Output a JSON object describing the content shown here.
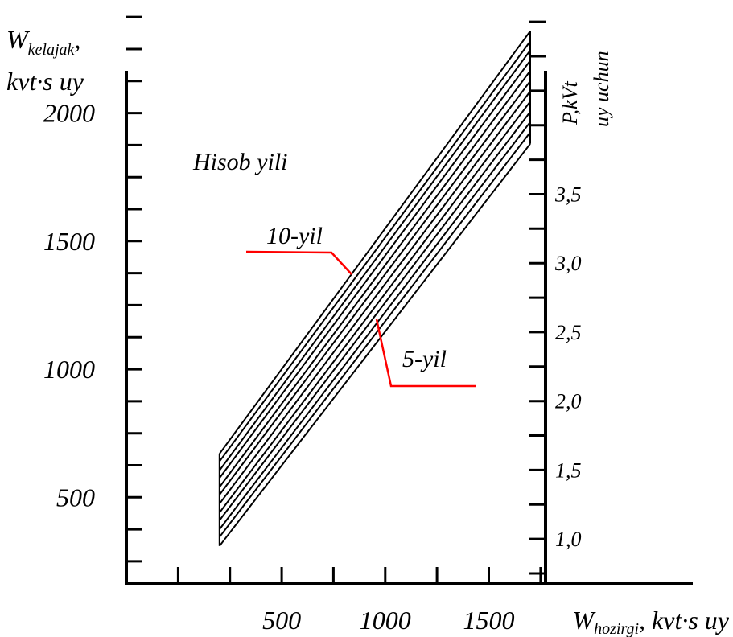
{
  "chart_data": {
    "type": "line",
    "yaxis": {
      "label_main": "W",
      "label_sub": "kelajak",
      "label_tail": ",",
      "label_line2": "kvt·s uy",
      "ticks": [
        500,
        1000,
        1500,
        2000
      ],
      "ylim": [
        165,
        2410
      ]
    },
    "xaxis": {
      "label_main": "W",
      "label_sub": "hozirgi",
      "label_tail": ", kvt·s uy",
      "ticks": [
        500,
        1000,
        1500
      ],
      "xlim": [
        -250,
        1770
      ]
    },
    "right_axis": {
      "label_line1": "P,kVt",
      "label_line2": "uy uchun",
      "ticks": [
        "1,0",
        "1,5",
        "2,0",
        "2,5",
        "3,0",
        "3,5"
      ],
      "tick_values": [
        1.0,
        1.5,
        2.0,
        2.5,
        3.0,
        3.5
      ],
      "range": [
        0.68,
        4.85
      ]
    },
    "title": "Hisob yili",
    "annotations": [
      {
        "text": "10-yil",
        "target": "top"
      },
      {
        "text": "5-yil",
        "target": "bottom"
      }
    ],
    "line_count": 12,
    "x_start": 200,
    "x_end": 1700,
    "series": [
      {
        "values_at_x": [
          200,
          1700
        ],
        "values": [
          670,
          2320
        ]
      },
      {
        "values_at_x": [
          200,
          1700
        ],
        "values": [
          640,
          2280
        ]
      },
      {
        "values_at_x": [
          200,
          1700
        ],
        "values": [
          605,
          2245
        ]
      },
      {
        "values_at_x": [
          200,
          1700
        ],
        "values": [
          575,
          2205
        ]
      },
      {
        "values_at_x": [
          200,
          1700
        ],
        "values": [
          540,
          2165
        ]
      },
      {
        "values_at_x": [
          200,
          1700
        ],
        "values": [
          510,
          2125
        ]
      },
      {
        "values_at_x": [
          200,
          1700
        ],
        "values": [
          475,
          2085
        ]
      },
      {
        "values_at_x": [
          200,
          1700
        ],
        "values": [
          440,
          2045
        ]
      },
      {
        "values_at_x": [
          200,
          1700
        ],
        "values": [
          410,
          2005
        ]
      },
      {
        "values_at_x": [
          200,
          1700
        ],
        "values": [
          375,
          1965
        ]
      },
      {
        "values_at_x": [
          200,
          1700
        ],
        "values": [
          345,
          1925
        ]
      },
      {
        "values_at_x": [
          200,
          1700
        ],
        "values": [
          310,
          1880
        ]
      }
    ],
    "colors": {
      "lines": "#000000",
      "annotation": "#ff0000",
      "axes": "#000000"
    },
    "grid": false
  }
}
